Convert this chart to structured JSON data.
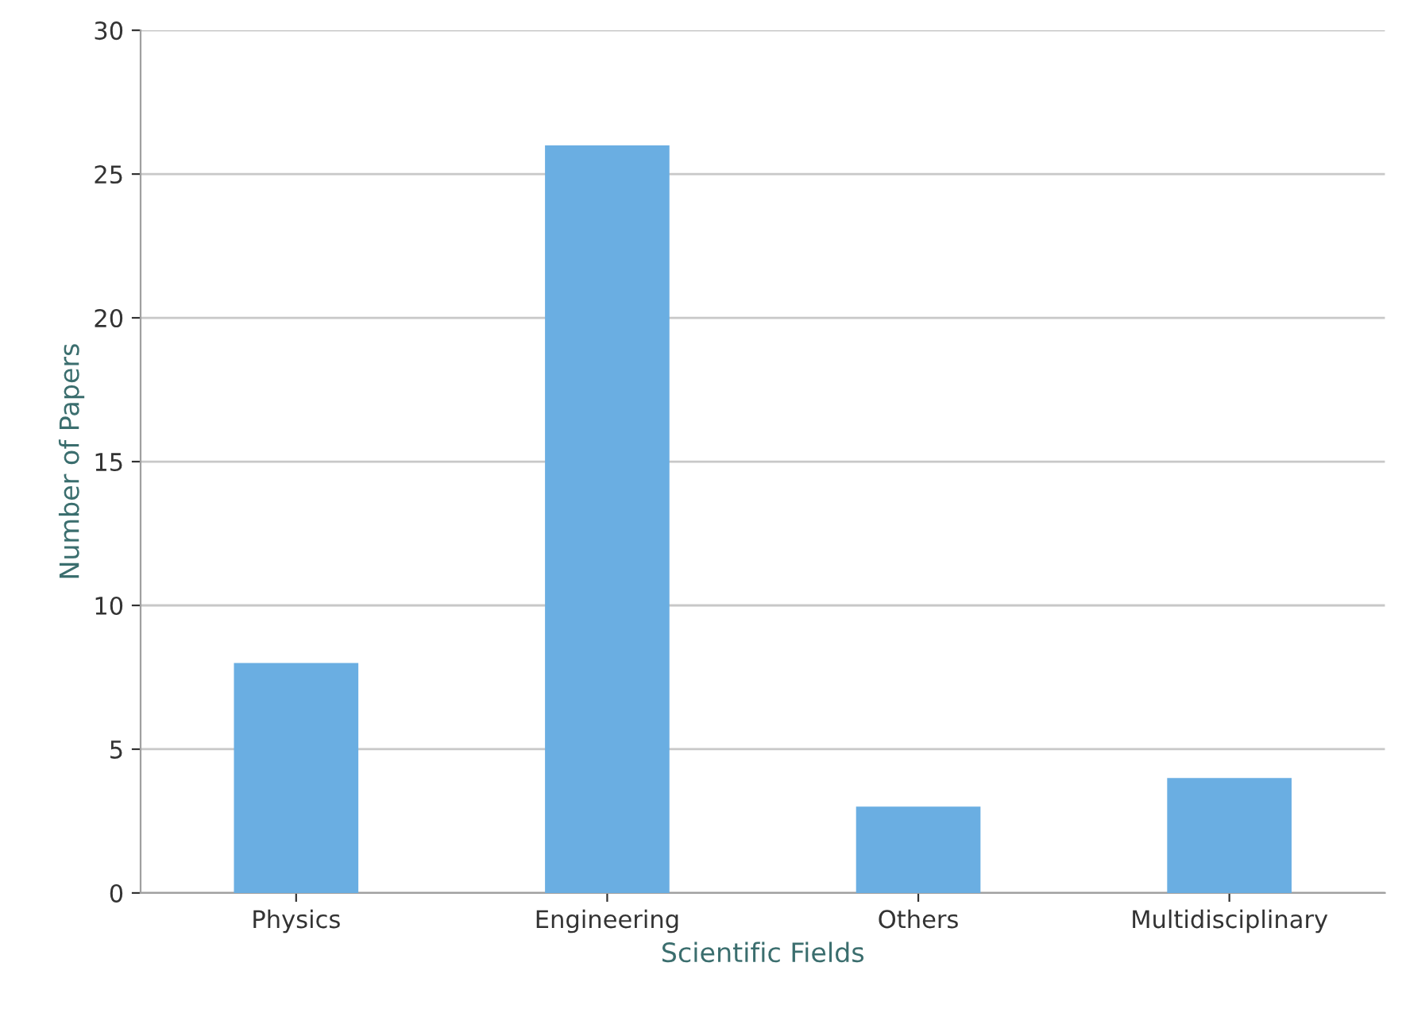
{
  "chart_data": {
    "type": "bar",
    "xlabel": "Scientific Fields",
    "ylabel": "Number of Papers",
    "categories": [
      "Physics",
      "Engineering",
      "Others",
      "Multidisciplinary"
    ],
    "values": [
      8,
      26,
      3,
      4
    ],
    "color": "#6aaee2",
    "ylim": [
      0,
      30
    ],
    "yticks": [
      0,
      5,
      10,
      15,
      20,
      25,
      30
    ],
    "grid": "y"
  }
}
